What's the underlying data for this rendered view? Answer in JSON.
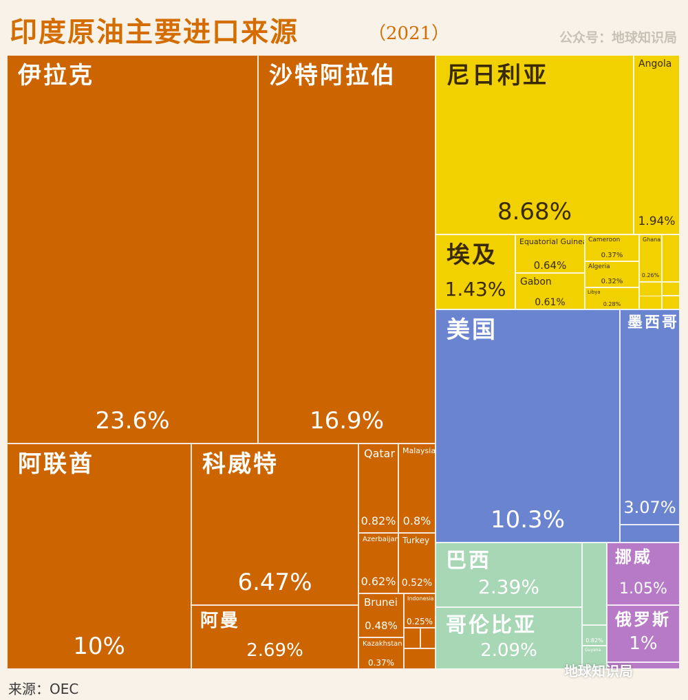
{
  "header": {
    "title": "印度原油主要进口来源",
    "year": "（2021）",
    "account": "公众号：地球知识局"
  },
  "footer": {
    "source": "来源：OEC",
    "watermark": "地球知识局"
  },
  "colors": {
    "orange": "#cc6500",
    "yellow": "#f2d100",
    "blue": "#6b84cf",
    "green": "#a8d7b5",
    "purple": "#b77ac6",
    "title": "#d46d00"
  },
  "chart_data": {
    "type": "treemap",
    "unit": "%",
    "items": [
      {
        "label": "伊拉克",
        "value": 23.6,
        "display": "23.6%",
        "group": "orange"
      },
      {
        "label": "沙特阿拉伯",
        "value": 16.9,
        "display": "16.9%",
        "group": "orange"
      },
      {
        "label": "阿联酋",
        "value": 10,
        "display": "10%",
        "group": "orange"
      },
      {
        "label": "科威特",
        "value": 6.47,
        "display": "6.47%",
        "group": "orange"
      },
      {
        "label": "阿曼",
        "value": 2.69,
        "display": "2.69%",
        "group": "orange"
      },
      {
        "label": "Qatar",
        "value": 0.82,
        "display": "0.82%",
        "group": "orange"
      },
      {
        "label": "Malaysia",
        "value": 0.8,
        "display": "0.8%",
        "group": "orange"
      },
      {
        "label": "Azerbaijan",
        "value": 0.62,
        "display": "0.62%",
        "group": "orange"
      },
      {
        "label": "Turkey",
        "value": 0.52,
        "display": "0.52%",
        "group": "orange"
      },
      {
        "label": "Brunei",
        "value": 0.48,
        "display": "0.48%",
        "group": "orange"
      },
      {
        "label": "Indonesia",
        "value": 0.25,
        "display": "0.25%",
        "group": "orange"
      },
      {
        "label": "Kazakhstan",
        "value": 0.37,
        "display": "0.37%",
        "group": "orange"
      },
      {
        "label": "",
        "value": null,
        "display": "",
        "group": "orange"
      },
      {
        "label": "",
        "value": null,
        "display": "",
        "group": "orange"
      },
      {
        "label": "",
        "value": null,
        "display": "",
        "group": "orange"
      },
      {
        "label": "尼日利亚",
        "value": 8.68,
        "display": "8.68%",
        "group": "yellow"
      },
      {
        "label": "Angola",
        "value": 1.94,
        "display": "1.94%",
        "group": "yellow"
      },
      {
        "label": "埃及",
        "value": 1.43,
        "display": "1.43%",
        "group": "yellow"
      },
      {
        "label": "Equatorial Guinea",
        "value": 0.64,
        "display": "0.64%",
        "group": "yellow"
      },
      {
        "label": "Gabon",
        "value": 0.61,
        "display": "0.61%",
        "group": "yellow"
      },
      {
        "label": "Cameroon",
        "value": 0.37,
        "display": "0.37%",
        "group": "yellow"
      },
      {
        "label": "Algeria",
        "value": 0.32,
        "display": "0.32%",
        "group": "yellow"
      },
      {
        "label": "Libya",
        "value": 0.28,
        "display": "0.28%",
        "group": "yellow"
      },
      {
        "label": "Ghana",
        "value": 0.26,
        "display": "0.26%",
        "group": "yellow"
      },
      {
        "label": "",
        "value": null,
        "display": "",
        "group": "yellow"
      },
      {
        "label": "",
        "value": null,
        "display": "",
        "group": "yellow"
      },
      {
        "label": "",
        "value": null,
        "display": "",
        "group": "yellow"
      },
      {
        "label": "",
        "value": null,
        "display": "",
        "group": "yellow"
      },
      {
        "label": "",
        "value": null,
        "display": "",
        "group": "yellow"
      },
      {
        "label": "美国",
        "value": 10.3,
        "display": "10.3%",
        "group": "blue"
      },
      {
        "label": "墨西哥",
        "value": 3.07,
        "display": "3.07%",
        "group": "blue"
      },
      {
        "label": "",
        "value": null,
        "display": "",
        "group": "blue"
      },
      {
        "label": "巴西",
        "value": 2.39,
        "display": "2.39%",
        "group": "green"
      },
      {
        "label": "哥伦比亚",
        "value": 2.09,
        "display": "2.09%",
        "group": "green"
      },
      {
        "label": "",
        "value": null,
        "display": "",
        "group": "green"
      },
      {
        "label": "",
        "value": null,
        "display": "0.82%",
        "group": "green"
      },
      {
        "label": "Guyana",
        "value": null,
        "display": "",
        "group": "green"
      },
      {
        "label": "挪威",
        "value": 1.05,
        "display": "1.05%",
        "group": "purple"
      },
      {
        "label": "俄罗斯",
        "value": 1,
        "display": "1%",
        "group": "purple"
      },
      {
        "label": "",
        "value": null,
        "display": "",
        "group": "purple"
      }
    ]
  }
}
